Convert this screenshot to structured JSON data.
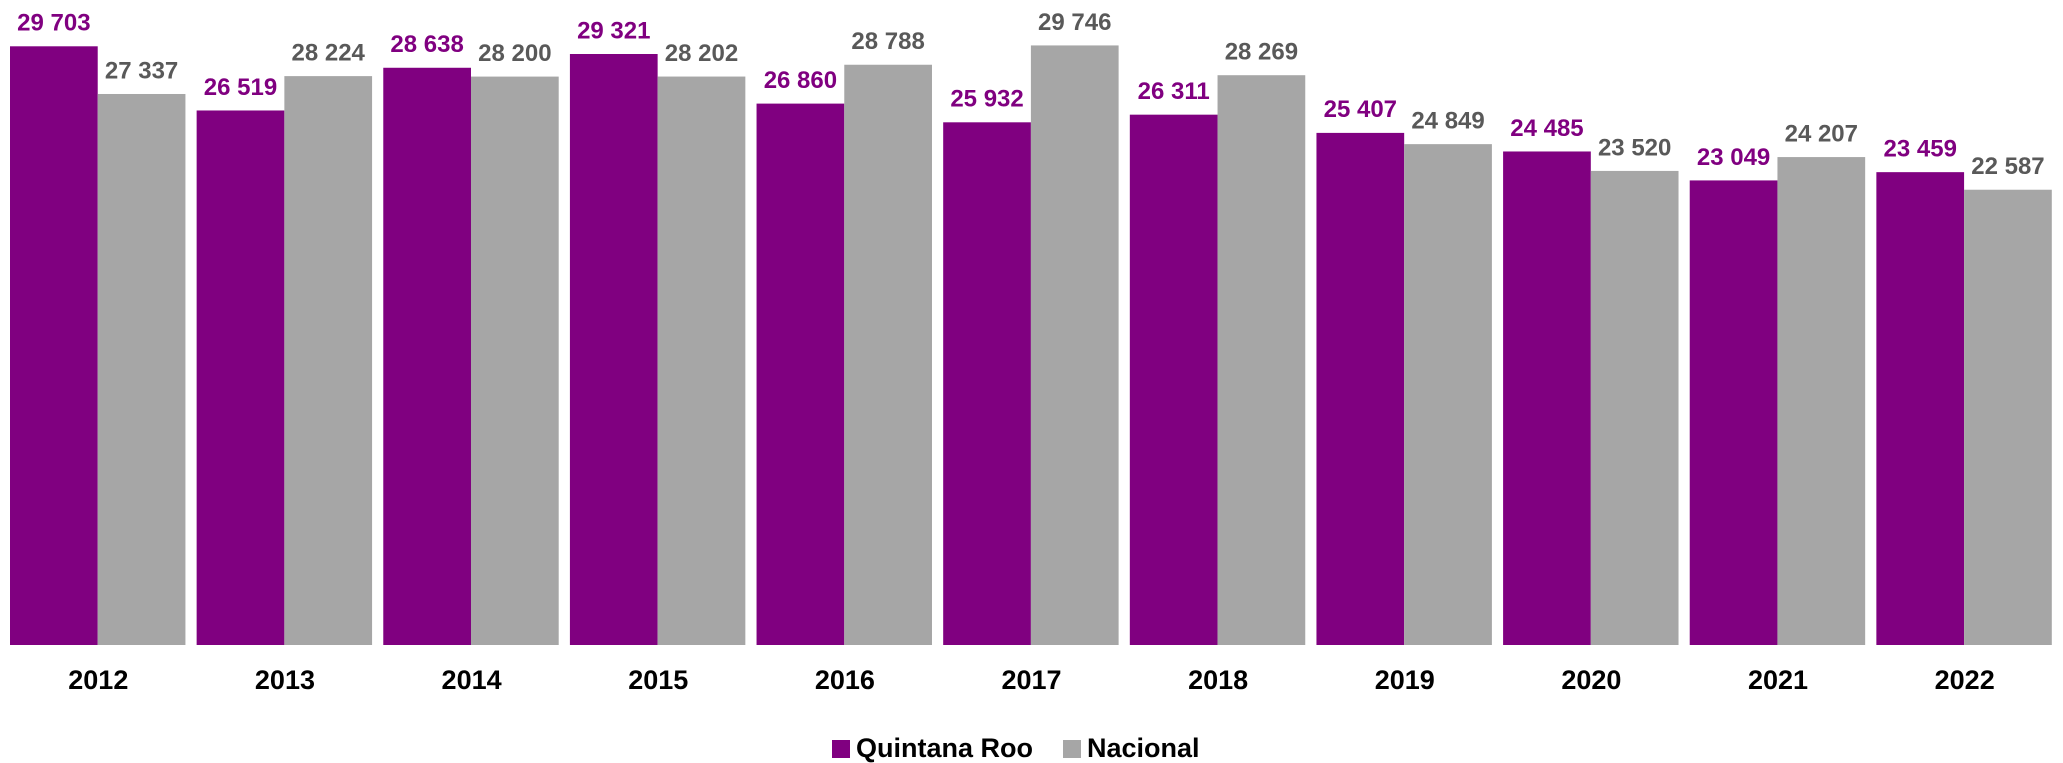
{
  "chart_data": {
    "type": "bar",
    "categories": [
      "2012",
      "2013",
      "2014",
      "2015",
      "2016",
      "2017",
      "2018",
      "2019",
      "2020",
      "2021",
      "2022"
    ],
    "series": [
      {
        "name": "Quintana Roo",
        "color": "#800080",
        "label_color": "#800080",
        "values": [
          29703,
          26519,
          28638,
          29321,
          26860,
          25932,
          26311,
          25407,
          24485,
          23049,
          23459
        ],
        "value_labels": [
          "29 703",
          "26 519",
          "28 638",
          "29 321",
          "26 860",
          "25 932",
          "26 311",
          "25 407",
          "24 485",
          "23 049",
          "23 459"
        ]
      },
      {
        "name": "Nacional",
        "color": "#a6a6a6",
        "label_color": "#595959",
        "values": [
          27337,
          28224,
          28200,
          28202,
          28788,
          29746,
          28269,
          24849,
          23520,
          24207,
          22587
        ],
        "value_labels": [
          "27 337",
          "28 224",
          "28 200",
          "28 202",
          "28 788",
          "29 746",
          "28 269",
          "24 849",
          "23 520",
          "24 207",
          "22 587"
        ]
      }
    ],
    "ylim": [
      0,
      32000
    ],
    "legend": "bottom"
  }
}
